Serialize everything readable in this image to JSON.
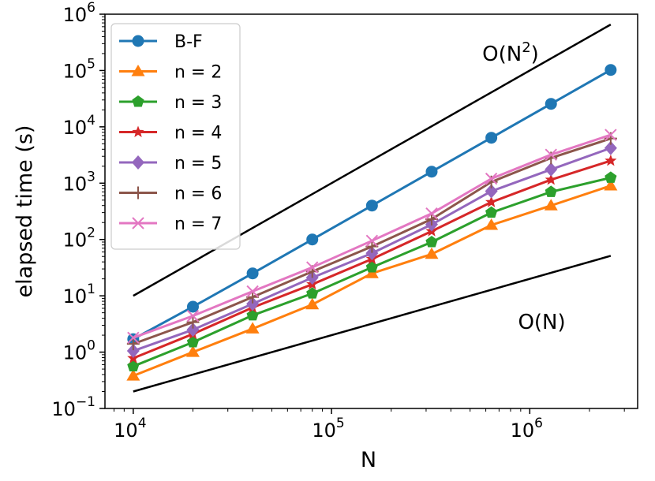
{
  "chart_data": {
    "type": "line",
    "xscale": "log",
    "yscale": "log",
    "xlabel": "N",
    "ylabel": "elapsed time (s)",
    "xlim": [
      7200,
      3500000
    ],
    "ylim": [
      0.1,
      1000000
    ],
    "x": [
      10000,
      20000,
      40000,
      80000,
      160000,
      320000,
      640000,
      1280000,
      2560000
    ],
    "xticks": [
      {
        "value": 10000,
        "base": "10",
        "exp": "4"
      },
      {
        "value": 100000,
        "base": "10",
        "exp": "5"
      },
      {
        "value": 1000000,
        "base": "10",
        "exp": "6"
      }
    ],
    "yticks": [
      {
        "value": 0.1,
        "base": "10",
        "exp": "−1"
      },
      {
        "value": 1,
        "base": "10",
        "exp": "0"
      },
      {
        "value": 10,
        "base": "10",
        "exp": "1"
      },
      {
        "value": 100,
        "base": "10",
        "exp": "2"
      },
      {
        "value": 1000,
        "base": "10",
        "exp": "3"
      },
      {
        "value": 10000,
        "base": "10",
        "exp": "4"
      },
      {
        "value": 100000,
        "base": "10",
        "exp": "5"
      },
      {
        "value": 1000000,
        "base": "10",
        "exp": "6"
      }
    ],
    "series": [
      {
        "name": "B-F",
        "color": "#1f77b4",
        "marker": "circle",
        "values": [
          1.7,
          6.4,
          25,
          100,
          400,
          1600,
          6400,
          25600,
          102400
        ]
      },
      {
        "name": "n = 2",
        "color": "#ff7f0e",
        "marker": "triangle",
        "values": [
          0.38,
          1.0,
          2.6,
          7.0,
          25,
          55,
          180,
          400,
          900
        ]
      },
      {
        "name": "n = 3",
        "color": "#2ca02c",
        "marker": "pentagon",
        "values": [
          0.56,
          1.5,
          4.5,
          11,
          32,
          90,
          300,
          700,
          1250
        ]
      },
      {
        "name": "n = 4",
        "color": "#d62728",
        "marker": "star",
        "values": [
          0.78,
          2.1,
          6.2,
          16,
          45,
          140,
          460,
          1150,
          2500
        ]
      },
      {
        "name": "n = 5",
        "color": "#9467bd",
        "marker": "diamond",
        "values": [
          1.05,
          2.5,
          7.2,
          21,
          57,
          185,
          720,
          1750,
          4200
        ]
      },
      {
        "name": "n = 6",
        "color": "#8c564b",
        "marker": "plus",
        "values": [
          1.4,
          3.4,
          9.5,
          27,
          75,
          230,
          1050,
          2800,
          6200
        ]
      },
      {
        "name": "n = 7",
        "color": "#e377c2",
        "marker": "x",
        "values": [
          1.8,
          4.4,
          12,
          32,
          95,
          290,
          1200,
          3200,
          7200
        ]
      }
    ],
    "reference_lines": [
      {
        "name": "O(N^2)",
        "label_main": "O(N",
        "label_sup": "2",
        "label_end": ")",
        "color": "#000000",
        "x": [
          10000,
          2560000
        ],
        "y": [
          10,
          655360
        ],
        "label_at": [
          800000,
          150000
        ]
      },
      {
        "name": "O(N)",
        "label_main": "O(N)",
        "label_sup": "",
        "label_end": "",
        "color": "#000000",
        "x": [
          10000,
          2560000
        ],
        "y": [
          0.2,
          51.2
        ],
        "label_at": [
          1150000,
          2.6
        ]
      }
    ],
    "legend": "top-left"
  }
}
